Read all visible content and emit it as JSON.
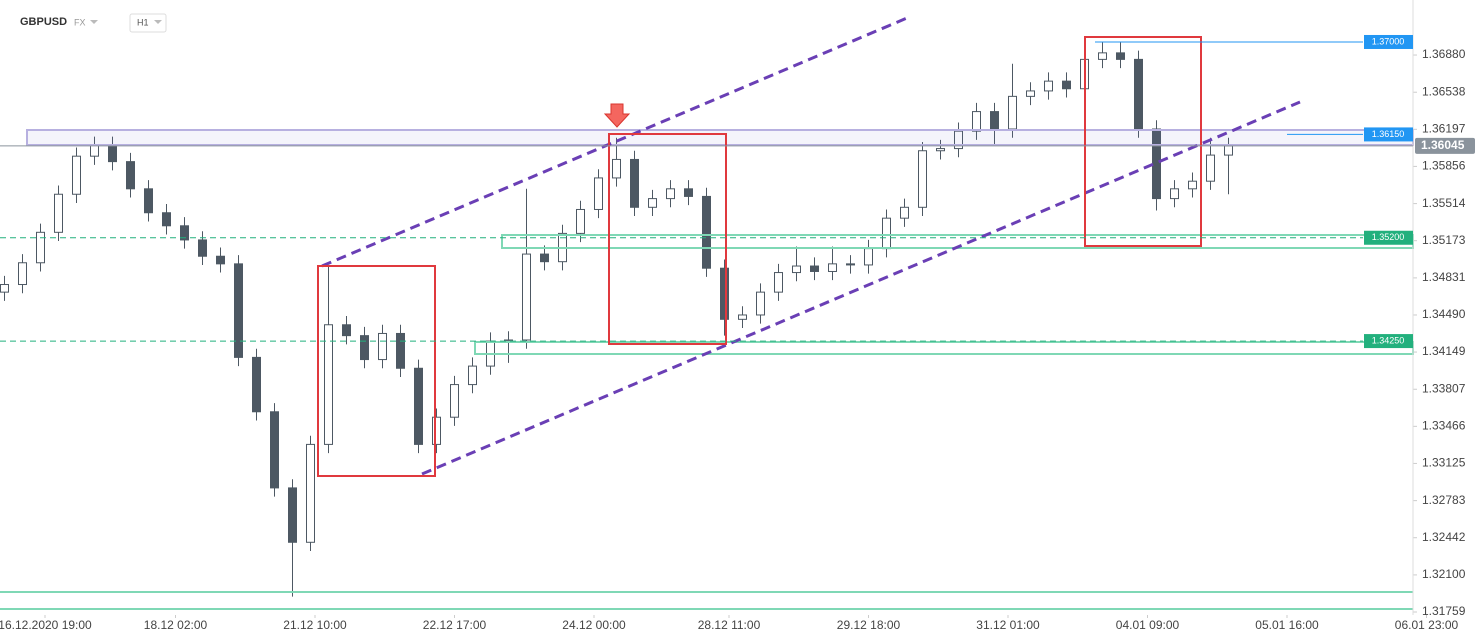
{
  "chart_data": {
    "type": "candlestick",
    "title": "GBPUSD",
    "market": "FX",
    "timeframe": "H1",
    "up_color": "#ffffff",
    "down_color": "#4d5863",
    "wick_color": "#4d5863",
    "x": [
      1,
      5,
      9,
      13,
      17,
      21,
      25,
      29,
      33,
      37,
      41,
      45,
      49,
      53,
      57,
      61,
      65,
      69,
      73,
      77,
      81,
      85,
      89,
      93,
      97,
      101,
      105,
      109,
      113,
      117,
      121,
      125,
      129,
      133,
      137,
      141,
      145,
      149,
      153,
      157,
      161,
      165,
      169,
      173,
      177,
      181,
      185,
      189,
      193,
      197,
      201,
      205,
      209,
      213,
      217,
      221,
      225,
      229,
      233,
      237,
      241,
      245,
      249,
      253,
      257,
      261,
      265,
      269,
      273
    ],
    "open": [
      1.347,
      1.3477,
      1.3497,
      1.3525,
      1.356,
      1.3595,
      1.3605,
      1.359,
      1.3565,
      1.3543,
      1.3531,
      1.3518,
      1.3503,
      1.3496,
      1.341,
      1.336,
      1.329,
      1.324,
      1.333,
      1.344,
      1.343,
      1.3408,
      1.3432,
      1.34,
      1.333,
      1.3355,
      1.3385,
      1.3402,
      1.3425,
      1.3426,
      1.3505,
      1.3498,
      1.3524,
      1.3546,
      1.3575,
      1.3592,
      1.3548,
      1.3556,
      1.3565,
      1.3558,
      1.3492,
      1.3445,
      1.3449,
      1.347,
      1.3488,
      1.3494,
      1.3489,
      1.3496,
      1.3495,
      1.351,
      1.3538,
      1.3548,
      1.36,
      1.3602,
      1.3618,
      1.3636,
      1.362,
      1.365,
      1.3655,
      1.3664,
      1.3657,
      1.3684,
      1.369,
      1.3684,
      1.362,
      1.3556,
      1.3565,
      1.3572,
      1.3596
    ],
    "high": [
      1.3485,
      1.3505,
      1.3533,
      1.3568,
      1.3603,
      1.3613,
      1.3613,
      1.3598,
      1.3573,
      1.3551,
      1.3539,
      1.3526,
      1.3511,
      1.3504,
      1.3418,
      1.3368,
      1.3298,
      1.3338,
      1.3495,
      1.3448,
      1.3438,
      1.344,
      1.344,
      1.3408,
      1.3363,
      1.3393,
      1.341,
      1.3433,
      1.3434,
      1.3565,
      1.3513,
      1.3532,
      1.3554,
      1.3583,
      1.3612,
      1.36,
      1.3564,
      1.3573,
      1.3573,
      1.3566,
      1.35,
      1.3457,
      1.3478,
      1.3496,
      1.3512,
      1.3502,
      1.3512,
      1.3504,
      1.3518,
      1.3546,
      1.3556,
      1.3608,
      1.361,
      1.3626,
      1.3644,
      1.3644,
      1.368,
      1.3663,
      1.3672,
      1.3672,
      1.3692,
      1.37,
      1.37,
      1.3692,
      1.3628,
      1.3573,
      1.358,
      1.3612,
      1.3612
    ],
    "low": [
      1.3462,
      1.3469,
      1.3489,
      1.3517,
      1.3552,
      1.3587,
      1.3582,
      1.3557,
      1.3535,
      1.3523,
      1.351,
      1.3495,
      1.3488,
      1.3402,
      1.3352,
      1.3282,
      1.319,
      1.3232,
      1.3322,
      1.3422,
      1.34,
      1.34,
      1.3392,
      1.3322,
      1.3322,
      1.3347,
      1.3377,
      1.3394,
      1.3405,
      1.3418,
      1.349,
      1.349,
      1.3516,
      1.3538,
      1.3567,
      1.354,
      1.354,
      1.3548,
      1.355,
      1.3484,
      1.343,
      1.3437,
      1.3441,
      1.3462,
      1.348,
      1.3481,
      1.3481,
      1.3487,
      1.3487,
      1.3502,
      1.353,
      1.354,
      1.3592,
      1.3594,
      1.361,
      1.3605,
      1.3612,
      1.3642,
      1.3647,
      1.3649,
      1.3649,
      1.3676,
      1.3676,
      1.3612,
      1.3545,
      1.3548,
      1.3557,
      1.3564,
      1.356
    ],
    "close": [
      1.3477,
      1.3497,
      1.3525,
      1.356,
      1.3595,
      1.3605,
      1.359,
      1.3565,
      1.3543,
      1.3531,
      1.3518,
      1.3503,
      1.3496,
      1.341,
      1.336,
      1.329,
      1.324,
      1.333,
      1.344,
      1.343,
      1.3408,
      1.3432,
      1.34,
      1.333,
      1.3355,
      1.3385,
      1.3402,
      1.3425,
      1.3426,
      1.3505,
      1.3498,
      1.3524,
      1.3546,
      1.3575,
      1.3592,
      1.3548,
      1.3556,
      1.3565,
      1.3558,
      1.3492,
      1.3445,
      1.3449,
      1.347,
      1.3488,
      1.3494,
      1.3489,
      1.3496,
      1.3495,
      1.351,
      1.3538,
      1.3548,
      1.36,
      1.3602,
      1.3618,
      1.3636,
      1.362,
      1.365,
      1.3655,
      1.3664,
      1.3657,
      1.3684,
      1.369,
      1.3684,
      1.362,
      1.3556,
      1.3565,
      1.3572,
      1.3596,
      1.36045
    ],
    "xlim": [
      0,
      314
    ],
    "xticks": [
      {
        "value": 10,
        "label": "16.12.2020 19:00"
      },
      {
        "value": 39,
        "label": "18.12 02:00"
      },
      {
        "value": 70,
        "label": "21.12 10:00"
      },
      {
        "value": 101,
        "label": "22.12 17:00"
      },
      {
        "value": 132,
        "label": "24.12 00:00"
      },
      {
        "value": 162,
        "label": "28.12 11:00"
      },
      {
        "value": 193,
        "label": "29.12 18:00"
      },
      {
        "value": 224,
        "label": "31.12 01:00"
      },
      {
        "value": 255,
        "label": "04.01 09:00"
      },
      {
        "value": 286,
        "label": "05.01 16:00"
      },
      {
        "value": 317,
        "label": "06.01 23:00"
      }
    ],
    "ylim": [
      1.31759,
      1.37386
    ],
    "yticks": [
      {
        "value": 1.3688,
        "label": "1.36880"
      },
      {
        "value": 1.36538,
        "label": "1.36538"
      },
      {
        "value": 1.36197,
        "label": "1.36197"
      },
      {
        "value": 1.35856,
        "label": "1.35856"
      },
      {
        "value": 1.35514,
        "label": "1.35514"
      },
      {
        "value": 1.35173,
        "label": "1.35173"
      },
      {
        "value": 1.34831,
        "label": "1.34831"
      },
      {
        "value": 1.3449,
        "label": "1.34490"
      },
      {
        "value": 1.34149,
        "label": "1.34149"
      },
      {
        "value": 1.33807,
        "label": "1.33807"
      },
      {
        "value": 1.33466,
        "label": "1.33466"
      },
      {
        "value": 1.33125,
        "label": "1.33125"
      },
      {
        "value": 1.32783,
        "label": "1.32783"
      },
      {
        "value": 1.32442,
        "label": "1.32442"
      },
      {
        "value": 1.321,
        "label": "1.32100"
      },
      {
        "value": 1.31759,
        "label": "1.31759"
      }
    ],
    "levels": [
      {
        "value": 1.37,
        "label": "1.37000",
        "color": "#2196f3",
        "style": "short"
      },
      {
        "value": 1.3615,
        "label": "1.36150",
        "color": "#2196f3",
        "style": "short"
      },
      {
        "value": 1.352,
        "label": "1.35200",
        "color": "#22b07d",
        "style": "dashed"
      },
      {
        "value": 1.3425,
        "label": "1.34250",
        "color": "#22b07d",
        "style": "dashed"
      },
      {
        "value": 1.36045,
        "label": "1.36045",
        "color": "#8a939c",
        "style": "current"
      }
    ]
  }
}
